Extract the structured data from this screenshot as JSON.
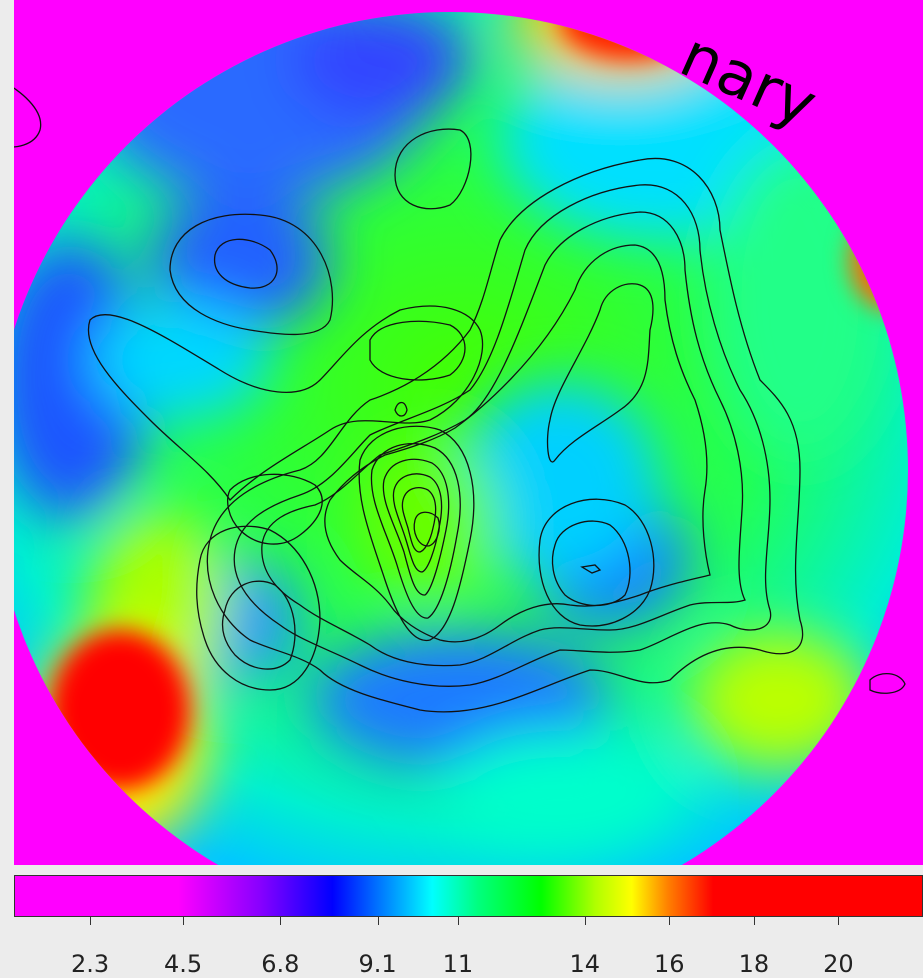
{
  "chart_data": {
    "type": "heatmap",
    "title": "",
    "xlabel": "",
    "ylabel": "",
    "watermark": "nary",
    "colorbar": {
      "ticks": [
        "2.3",
        "4.5",
        "6.8",
        "9.1",
        "11",
        "14",
        "16",
        "18",
        "20"
      ],
      "min": 0.5,
      "max": 22,
      "colormap": [
        "#ff00ff",
        "#8800ff",
        "#0000ff",
        "#00b7ff",
        "#00ffff",
        "#00ff80",
        "#00ff00",
        "#b0ff00",
        "#ffff00",
        "#ff8000",
        "#ff0000",
        "#ff0000"
      ]
    },
    "contours": "black contour lines overlaid on circular field"
  }
}
